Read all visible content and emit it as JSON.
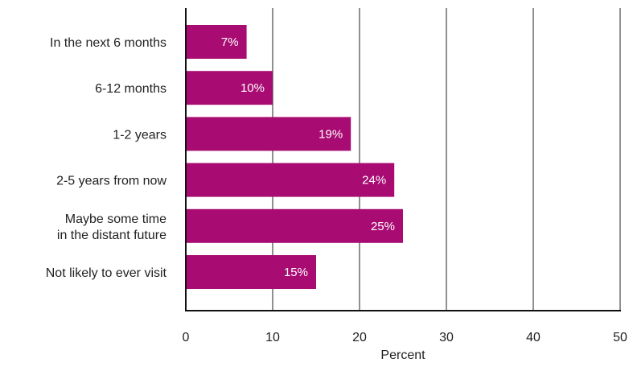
{
  "chart_data": {
    "type": "bar",
    "orientation": "horizontal",
    "categories": [
      [
        "In the next 6 months"
      ],
      [
        "6-12 months"
      ],
      [
        "1-2 years"
      ],
      [
        "2-5 years from now"
      ],
      [
        "Maybe some time",
        "in the distant future"
      ],
      [
        "Not likely to ever visit"
      ]
    ],
    "values": [
      7,
      10,
      19,
      24,
      25,
      15
    ],
    "value_labels": [
      "7%",
      "10%",
      "19%",
      "24%",
      "25%",
      "15%"
    ],
    "xlabel": "Percent",
    "xlim": [
      0,
      50
    ],
    "x_ticks": [
      "0",
      "10",
      "20",
      "30",
      "40",
      "50"
    ],
    "grid": "vertical",
    "bar_color": "#a80c72"
  }
}
